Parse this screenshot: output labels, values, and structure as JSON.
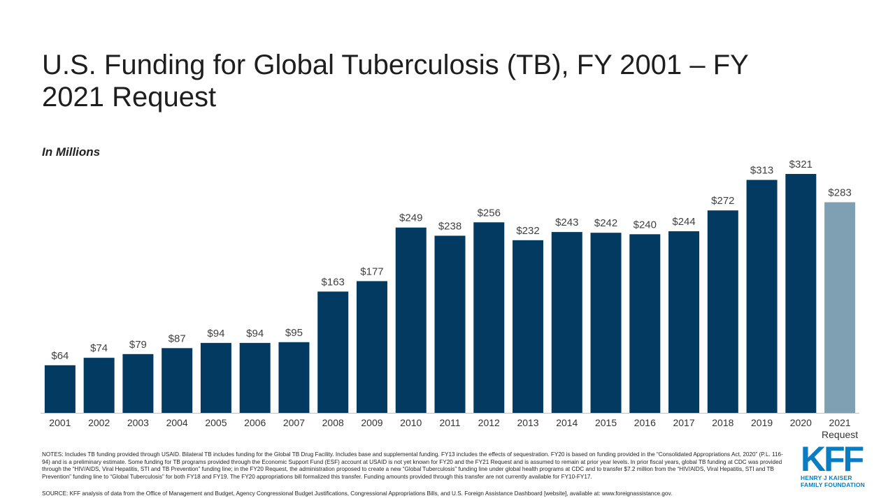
{
  "slide": {
    "title": "U.S. Funding for Global Tuberculosis (TB), FY 2001 – FY 2021 Request",
    "units_label": "In Millions",
    "notes": "NOTES: Includes TB funding provided through USAID. Bilateral TB includes funding for the Global TB Drug Facility. Includes base and supplemental funding. FY13 includes the effects of sequestration. FY20 is based on funding provided in the “Consolidated Appropriations Act, 2020” (P.L. 116-94) and is a preliminary estimate. Some funding for TB programs provided through the Economic Support Fund (ESF) account at USAID is not yet known for FY20 and the FY21 Request and is assumed to remain at prior year levels. In prior fiscal years, global TB funding at CDC was provided through the “HIV/AIDS, Viral Hepatitis, STI and TB Prevention” funding line; in the FY20 Request, the administration proposed to create a new “Global Tuberculosis” funding line under global health programs at CDC and to transfer $7.2 million from the “HIV/AIDS, Viral Hepatitis, STI and TB Prevention” funding line to “Global Tuberculosis” for both FY18 and FY19. The FY20 appropriations bill formalized this transfer. Funding amounts provided through this transfer are not currently available for FY10-FY17.",
    "source": "SOURCE: KFF analysis of data from the Office of Management and Budget, Agency Congressional Budget Justifications, Congressional Appropriations Bills, and U.S. Foreign Assistance Dashboard [website], available at: www.foreignassistance.gov."
  },
  "logo": {
    "mark": "KFF",
    "line1": "HENRY J KAISER",
    "line2": "FAMILY FOUNDATION",
    "color": "#0a7cc1"
  },
  "chart_data": {
    "type": "bar",
    "title": "U.S. Funding for Global Tuberculosis (TB), FY 2001 – FY 2021 Request",
    "ylabel": "In Millions",
    "xlabel": "",
    "categories": [
      "2001",
      "2002",
      "2003",
      "2004",
      "2005",
      "2006",
      "2007",
      "2008",
      "2009",
      "2010",
      "2011",
      "2012",
      "2013",
      "2014",
      "2015",
      "2016",
      "2017",
      "2018",
      "2019",
      "2020",
      "2021 Request"
    ],
    "values": [
      64,
      74,
      79,
      87,
      94,
      94,
      95,
      163,
      177,
      249,
      238,
      256,
      232,
      243,
      242,
      240,
      244,
      272,
      313,
      321,
      283
    ],
    "value_labels": [
      "$64",
      "$74",
      "$79",
      "$87",
      "$94",
      "$94",
      "$95",
      "$163",
      "$177",
      "$249",
      "$238",
      "$256",
      "$232",
      "$243",
      "$242",
      "$240",
      "$244",
      "$272",
      "$313",
      "$321",
      "$283"
    ],
    "ylim": [
      0,
      321
    ],
    "grid": false,
    "legend": "none",
    "colors": {
      "enacted": "#033a62",
      "request": "#7f9fb2",
      "axis": "#bfbfbf",
      "label": "#404040",
      "tick": "#333333"
    },
    "highlight_index": 20
  }
}
